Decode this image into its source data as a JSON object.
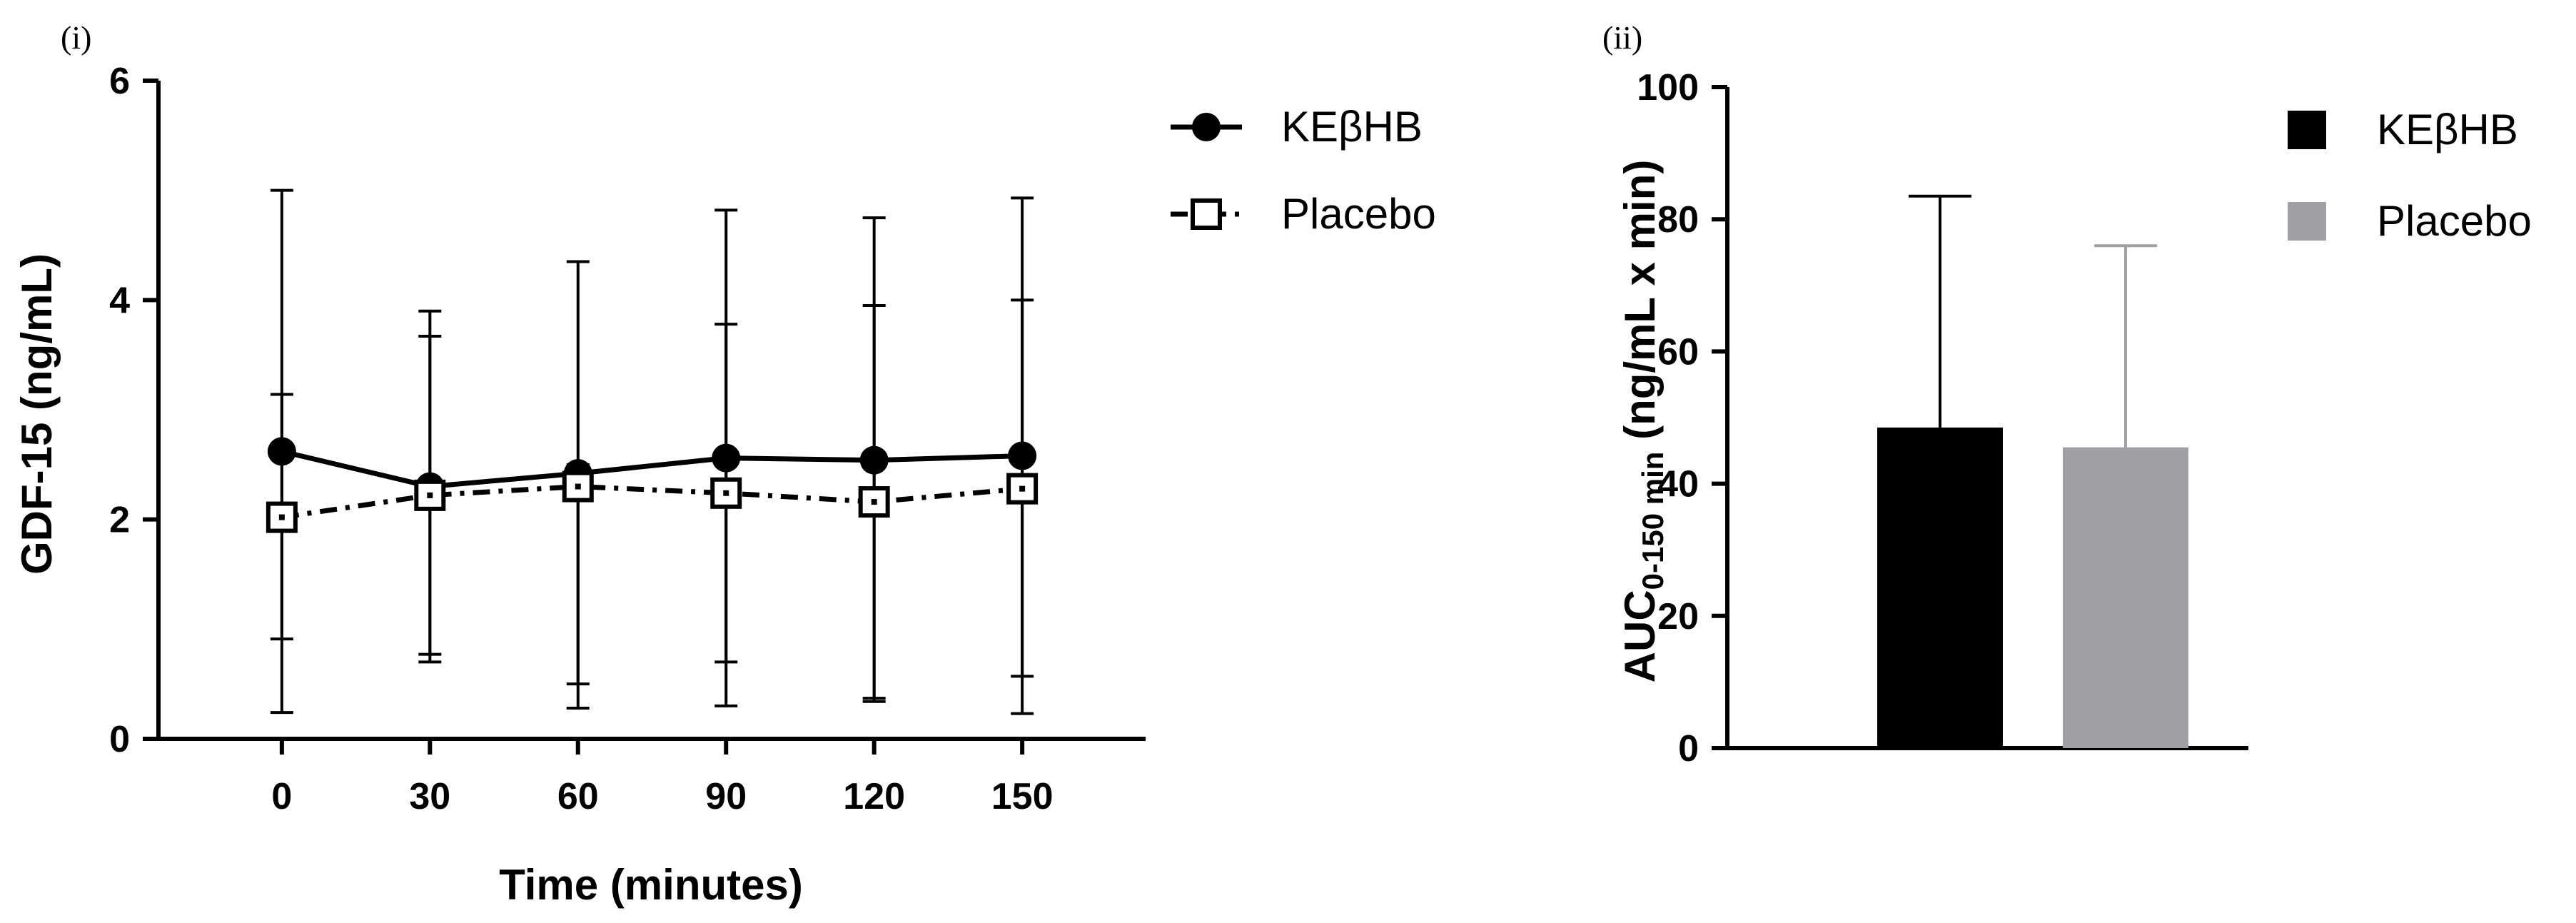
{
  "chart_data": [
    {
      "panel": "(i)",
      "type": "line",
      "x": [
        0,
        30,
        60,
        90,
        120,
        150
      ],
      "tick_labels_x": [
        "0",
        "30",
        "60",
        "90",
        "120",
        "150"
      ],
      "tick_labels_y": [
        "0",
        "2",
        "4",
        "6"
      ],
      "xlabel": "Time (minutes)",
      "ylabel": "GDF-15 (ng/mL)",
      "xlim": [
        -25,
        175
      ],
      "ylim": [
        0,
        6
      ],
      "grid": false,
      "legend": "top-right",
      "series": [
        {
          "name": "KEβHB",
          "values": [
            2.62,
            2.3,
            2.42,
            2.56,
            2.54,
            2.58
          ],
          "error_upper": [
            5.0,
            3.67,
            4.35,
            4.82,
            4.75,
            4.93
          ],
          "error_lower": [
            0.24,
            0.77,
            0.5,
            0.7,
            0.37,
            0.57
          ],
          "marker": "filled-circle",
          "line": "solid",
          "color": "#000000"
        },
        {
          "name": "Placebo",
          "values": [
            2.02,
            2.22,
            2.3,
            2.24,
            2.16,
            2.28
          ],
          "error_upper": [
            3.14,
            3.9,
            2.5,
            3.78,
            3.95,
            4.0
          ],
          "error_lower": [
            0.91,
            0.7,
            0.28,
            0.3,
            0.34,
            0.23
          ],
          "marker": "open-square",
          "line": "dash-dot",
          "color": "#000000"
        }
      ]
    },
    {
      "panel": "(ii)",
      "type": "bar",
      "categories": [
        "KEβHB",
        "Placebo"
      ],
      "values": [
        48.5,
        45.5
      ],
      "error_upper": [
        83.5,
        76.0
      ],
      "tick_labels_y": [
        "0",
        "20",
        "40",
        "60",
        "80",
        "100"
      ],
      "ylabel_main": "AUC",
      "ylabel_sub": "0-150 min",
      "ylabel_rest": " (ng/mL x min)",
      "ylim": [
        0,
        100
      ],
      "grid": false,
      "legend": "top-right",
      "colors": [
        "#000000",
        "#a0a0a4"
      ]
    }
  ]
}
